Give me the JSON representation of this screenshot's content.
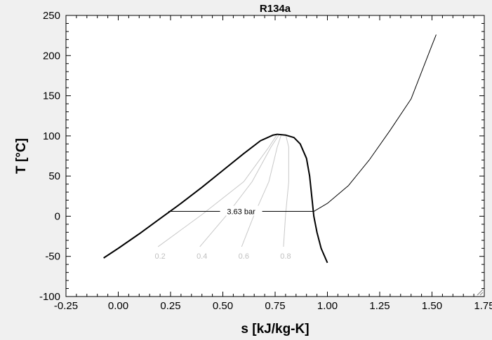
{
  "chart_data": {
    "type": "line",
    "title": "R134a",
    "xlabel": "s [kJ/kg-K]",
    "ylabel": "T [°C]",
    "xlim": [
      -0.25,
      1.75
    ],
    "ylim": [
      -100,
      250
    ],
    "x_ticks": [
      -0.25,
      0.0,
      0.25,
      0.5,
      0.75,
      1.0,
      1.25,
      1.5,
      1.75
    ],
    "x_tick_labels": [
      "-0.25",
      "0.00",
      "0.25",
      "0.50",
      "0.75",
      "1.00",
      "1.25",
      "1.50",
      "1.75"
    ],
    "y_ticks": [
      -100,
      -50,
      0,
      50,
      100,
      150,
      200,
      250
    ],
    "y_tick_labels": [
      "-100",
      "-50",
      "0",
      "50",
      "100",
      "150",
      "200",
      "250"
    ],
    "grid": false,
    "colors": {
      "saturation": "#000000",
      "isobar": "#000000",
      "quality": "#c8c8c8",
      "background": "#f0f0f0",
      "plot_background": "#ffffff"
    },
    "series": [
      {
        "role": "saturation-dome",
        "x": [
          -0.07,
          0.0,
          0.1,
          0.2,
          0.3,
          0.4,
          0.5,
          0.6,
          0.68,
          0.74,
          0.76,
          0.8,
          0.84,
          0.87,
          0.9,
          0.915,
          0.925,
          0.935,
          0.95,
          0.97,
          1.0
        ],
        "y": [
          -52,
          -40,
          -22,
          -3,
          16,
          36,
          57,
          78,
          94,
          101,
          102,
          101,
          98,
          90,
          72,
          50,
          25,
          0,
          -20,
          -40,
          -58
        ]
      },
      {
        "role": "isobar",
        "label": "3.63 bar",
        "x": [
          0.24,
          0.935,
          1.0,
          1.1,
          1.2,
          1.3,
          1.4,
          1.5,
          1.52
        ],
        "y": [
          6,
          6,
          16,
          38,
          70,
          107,
          146,
          213,
          226
        ]
      }
    ],
    "quality_lines": [
      {
        "label": "0.2",
        "x": [
          0.19,
          0.4,
          0.6,
          0.72,
          0.76
        ],
        "y": [
          -38,
          2,
          43,
          86,
          102
        ]
      },
      {
        "label": "0.4",
        "x": [
          0.39,
          0.52,
          0.64,
          0.73,
          0.77
        ],
        "y": [
          -38,
          2,
          43,
          86,
          102
        ]
      },
      {
        "label": "0.6",
        "x": [
          0.59,
          0.65,
          0.72,
          0.76,
          0.78
        ],
        "y": [
          -38,
          2,
          43,
          86,
          102
        ]
      },
      {
        "label": "0.8",
        "x": [
          0.79,
          0.8,
          0.815,
          0.815,
          0.8
        ],
        "y": [
          -38,
          2,
          43,
          86,
          102
        ]
      }
    ]
  }
}
